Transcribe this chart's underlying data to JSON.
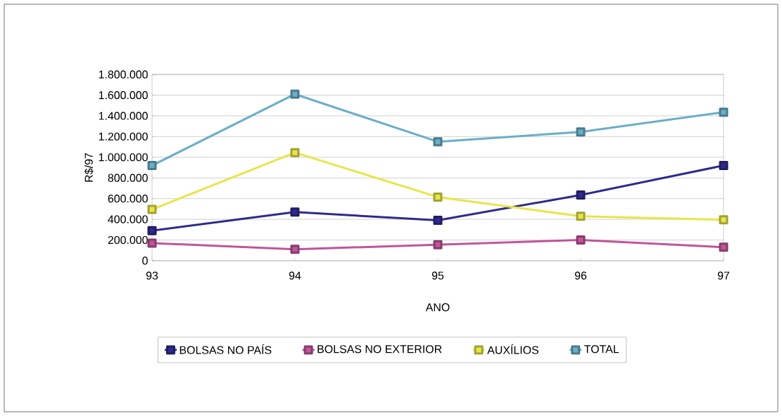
{
  "chart_data": {
    "type": "line",
    "xlabel": "ANO",
    "ylabel": "R$/97",
    "categories": [
      "93",
      "94",
      "95",
      "96",
      "97"
    ],
    "series": [
      {
        "name": "BOLSAS NO PAÍS",
        "color": "#2e2a8c",
        "values": [
          290000,
          470000,
          390000,
          635000,
          920000
        ]
      },
      {
        "name": "BOLSAS NO EXTERIOR",
        "color": "#c0559a",
        "values": [
          170000,
          110000,
          155000,
          200000,
          130000
        ]
      },
      {
        "name": "AUXÍLIOS",
        "color": "#e6e64a",
        "values": [
          495000,
          1045000,
          615000,
          430000,
          395000
        ]
      },
      {
        "name": "TOTAL",
        "color": "#6aaec8",
        "values": [
          920000,
          1610000,
          1150000,
          1245000,
          1435000
        ]
      }
    ],
    "ylim": [
      0,
      1800000
    ],
    "yticks": [
      0,
      {
        "value": 200000,
        "label": "200.000"
      },
      {
        "value": 400000,
        "label": "400.000"
      },
      {
        "value": 600000,
        "label": "600.000"
      },
      {
        "value": 800000,
        "label": "800.000"
      },
      {
        "value": 1000000,
        "label": "1.000.000"
      },
      {
        "value": 1200000,
        "label": "1.200.000"
      },
      {
        "value": 1400000,
        "label": "1.400.000"
      },
      {
        "value": 1600000,
        "label": "1.600.000"
      },
      {
        "value": 1800000,
        "label": "1.800.000"
      }
    ],
    "grid": "y",
    "legend": "bottom",
    "marker": "square",
    "line_style": "solid"
  }
}
